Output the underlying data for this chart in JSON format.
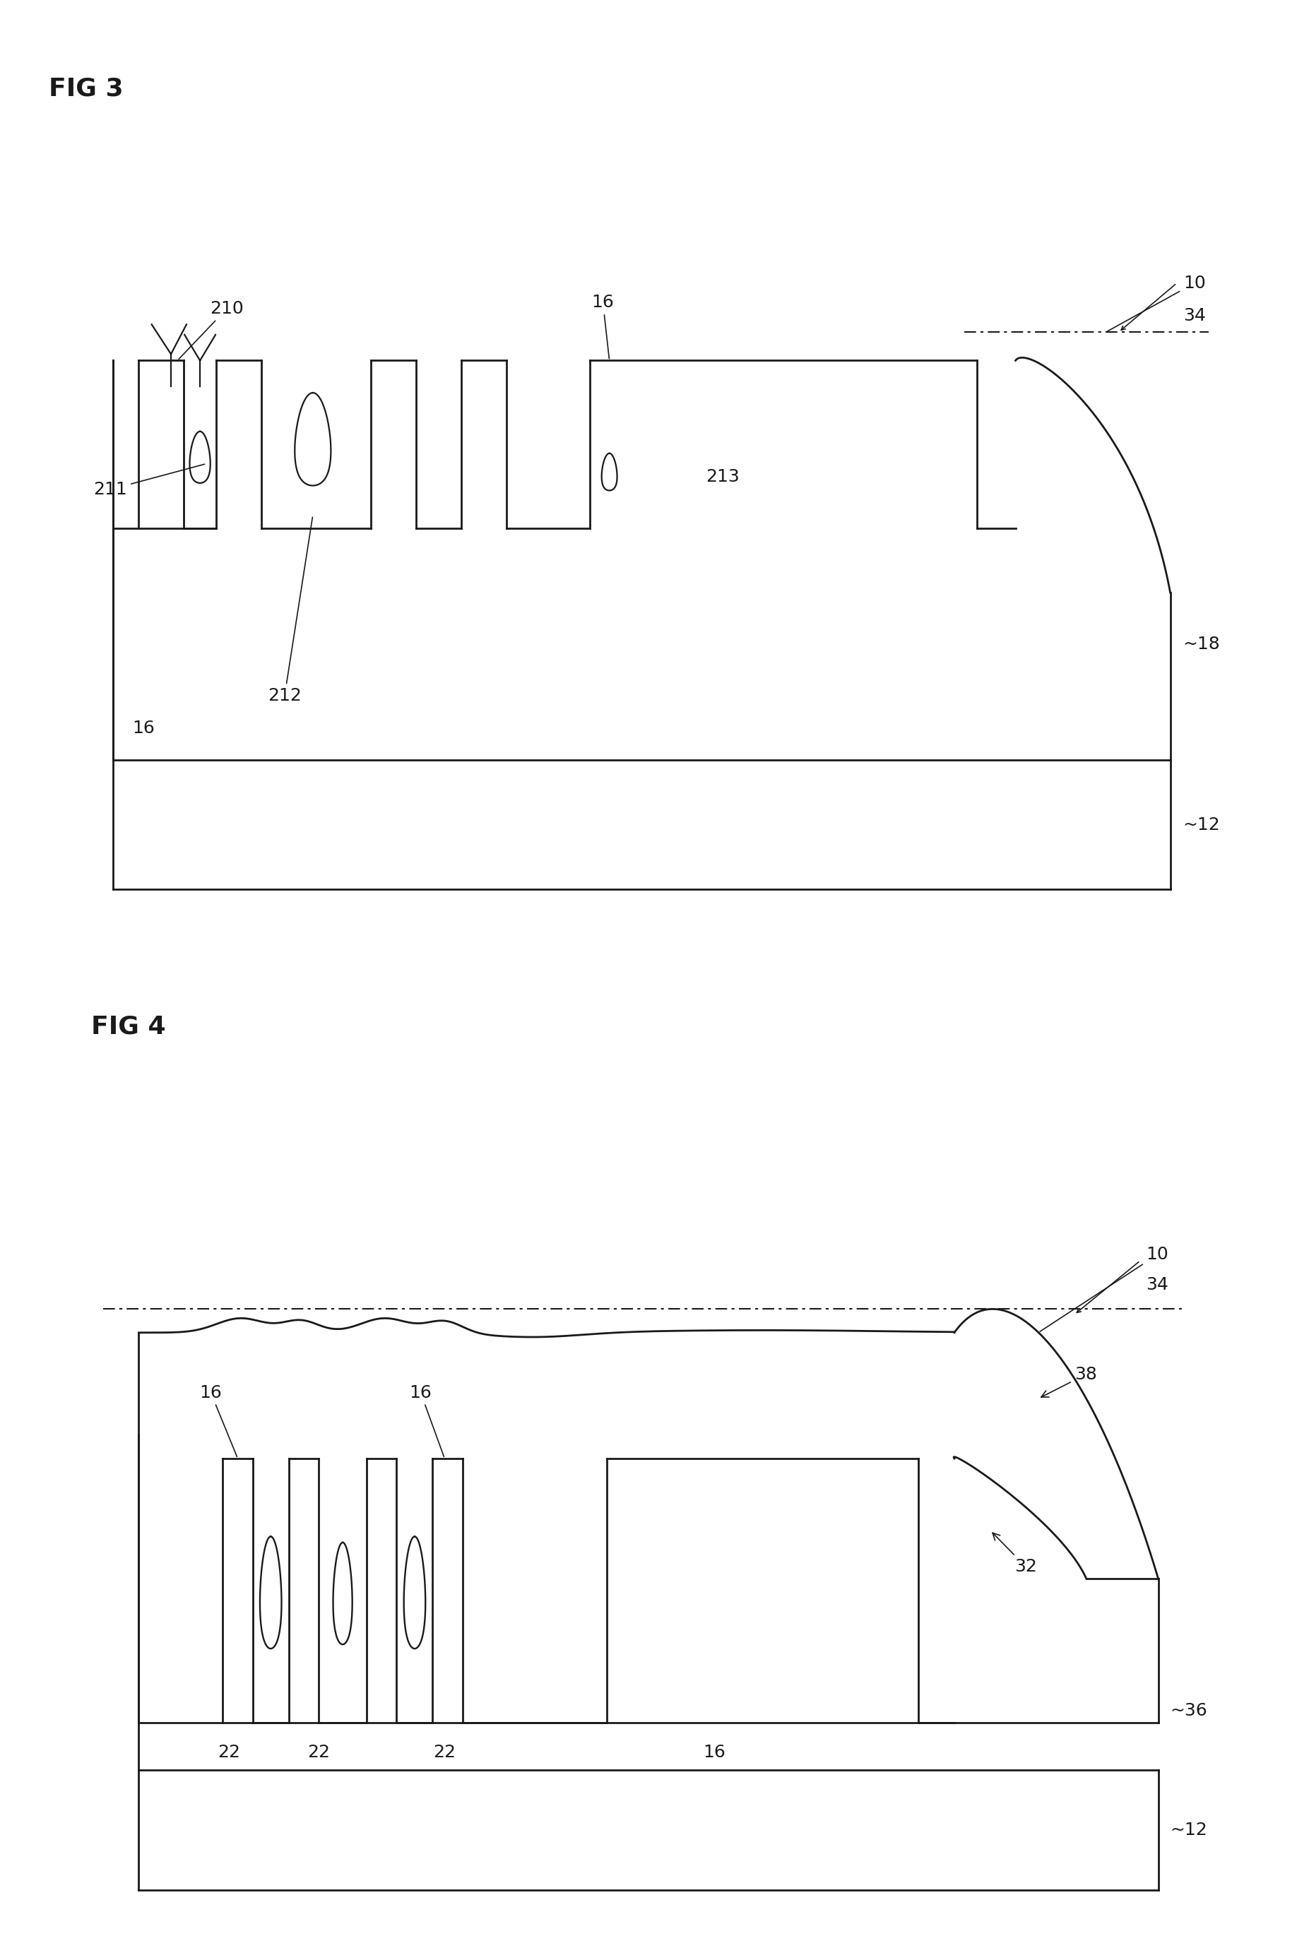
{
  "fig_title_3": "FIG 3",
  "fig_title_4": "FIG 4",
  "background_color": "#ffffff",
  "line_color": "#1a1a1a",
  "line_width": 2.0,
  "label_fontsize": 18,
  "title_fontsize": 26
}
